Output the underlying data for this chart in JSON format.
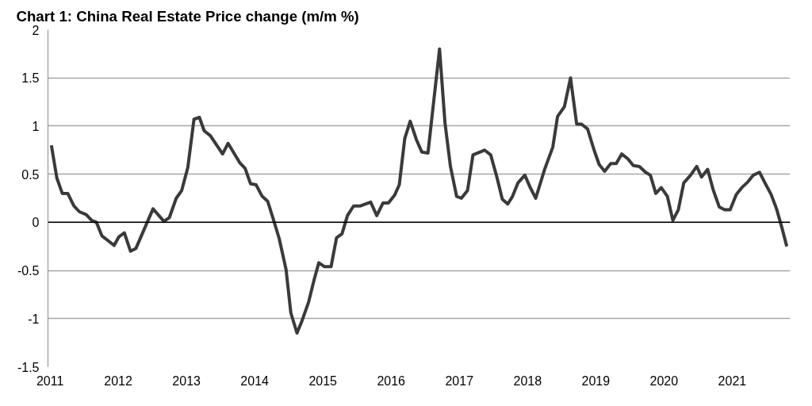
{
  "chart_data": {
    "type": "line",
    "title": "Chart 1: China Real Estate Price change (m/m %)",
    "x": [
      2011.02,
      2011.1,
      2011.18,
      2011.26,
      2011.35,
      2011.43,
      2011.53,
      2011.61,
      2011.68,
      2011.76,
      2011.94,
      2012.01,
      2012.09,
      2012.18,
      2012.26,
      2012.51,
      2012.67,
      2012.75,
      2012.85,
      2012.93,
      2013.02,
      2013.11,
      2013.19,
      2013.26,
      2013.35,
      2013.53,
      2013.61,
      2013.78,
      2013.86,
      2013.94,
      2014.02,
      2014.11,
      2014.19,
      2014.27,
      2014.36,
      2014.46,
      2014.53,
      2014.62,
      2014.69,
      2014.79,
      2014.87,
      2014.94,
      2015.02,
      2015.12,
      2015.2,
      2015.28,
      2015.36,
      2015.45,
      2015.55,
      2015.7,
      2015.79,
      2015.88,
      2015.96,
      2016.05,
      2016.12,
      2016.2,
      2016.28,
      2016.37,
      2016.45,
      2016.54,
      2016.71,
      2016.79,
      2016.87,
      2016.96,
      2017.03,
      2017.12,
      2017.2,
      2017.37,
      2017.46,
      2017.55,
      2017.63,
      2017.71,
      2017.78,
      2017.86,
      2017.96,
      2018.04,
      2018.12,
      2018.25,
      2018.37,
      2018.44,
      2018.54,
      2018.63,
      2018.72,
      2018.79,
      2018.88,
      2018.98,
      2019.05,
      2019.13,
      2019.22,
      2019.3,
      2019.38,
      2019.47,
      2019.55,
      2019.64,
      2019.73,
      2019.8,
      2019.88,
      2019.96,
      2020.05,
      2020.13,
      2020.21,
      2020.29,
      2020.39,
      2020.48,
      2020.55,
      2020.64,
      2020.72,
      2020.81,
      2020.89,
      2020.97,
      2021.06,
      2021.14,
      2021.23,
      2021.31,
      2021.4,
      2021.48,
      2021.57,
      2021.65,
      2021.73,
      2021.8
    ],
    "series": [
      {
        "color": "#3a3a3a",
        "values": [
          0.8,
          0.46,
          0.3,
          0.3,
          0.17,
          0.11,
          0.08,
          0.02,
          0.0,
          -0.14,
          -0.24,
          -0.15,
          -0.11,
          -0.3,
          -0.27,
          0.14,
          0.01,
          0.05,
          0.25,
          0.33,
          0.57,
          1.07,
          1.09,
          0.95,
          0.9,
          0.71,
          0.82,
          0.62,
          0.56,
          0.4,
          0.39,
          0.27,
          0.22,
          0.04,
          -0.17,
          -0.49,
          -0.94,
          -1.15,
          -1.03,
          -0.83,
          -0.6,
          -0.42,
          -0.46,
          -0.46,
          -0.16,
          -0.12,
          0.07,
          0.17,
          0.17,
          0.21,
          0.07,
          0.2,
          0.2,
          0.28,
          0.39,
          0.87,
          1.05,
          0.86,
          0.73,
          0.72,
          1.8,
          1.03,
          0.58,
          0.27,
          0.25,
          0.33,
          0.7,
          0.75,
          0.7,
          0.47,
          0.24,
          0.19,
          0.27,
          0.41,
          0.49,
          0.36,
          0.25,
          0.55,
          0.78,
          1.1,
          1.2,
          1.5,
          1.02,
          1.02,
          0.97,
          0.74,
          0.6,
          0.53,
          0.61,
          0.61,
          0.71,
          0.66,
          0.59,
          0.58,
          0.52,
          0.49,
          0.3,
          0.36,
          0.27,
          0.02,
          0.13,
          0.41,
          0.49,
          0.58,
          0.47,
          0.55,
          0.34,
          0.16,
          0.13,
          0.13,
          0.29,
          0.36,
          0.42,
          0.49,
          0.52,
          0.41,
          0.29,
          0.14,
          -0.06,
          -0.25
        ]
      }
    ],
    "xlim": [
      2010.97,
      2021.85
    ],
    "xticks": [
      2011,
      2012,
      2013,
      2014,
      2015,
      2016,
      2017,
      2018,
      2019,
      2020,
      2021
    ],
    "ylim": [
      -1.5,
      2
    ],
    "yticks": [
      -1.5,
      -1,
      -0.5,
      0,
      0.5,
      1,
      1.5,
      2
    ],
    "grid": "y",
    "ref_lines": [
      {
        "axis": "y",
        "value": 0,
        "color": "#000000"
      }
    ],
    "line_style": "solid",
    "marker": "none"
  }
}
